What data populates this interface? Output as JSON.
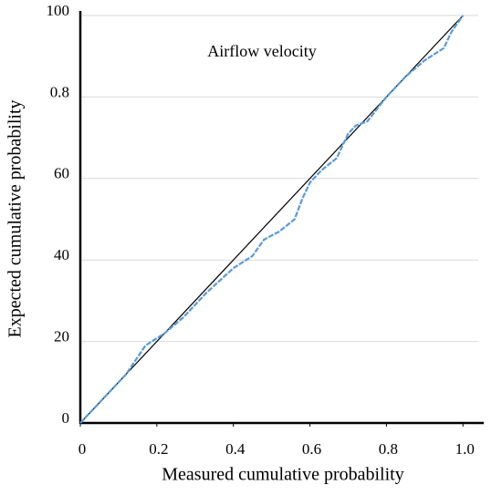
{
  "chart_data": {
    "type": "line",
    "annotation": "Airflow velocity",
    "x_label": "Measured cumulative probability",
    "y_label": "Expected cumulative probability",
    "xlim": [
      0,
      1.04
    ],
    "ylim": [
      0,
      1
    ],
    "xticks": [
      0,
      0.2,
      0.4,
      0.6,
      0.8,
      {
        "value": 1,
        "label": "1.0"
      }
    ],
    "yticks": [
      0,
      {
        "value": 0.2,
        "label": "20"
      },
      {
        "value": 0.4,
        "label": "40"
      },
      {
        "value": 0.6,
        "label": "60"
      },
      0.8,
      {
        "value": 1,
        "label": "100"
      }
    ],
    "grid": true,
    "series": [
      {
        "color": "#5b9bd5",
        "dashed": true,
        "x": [
          0,
          0.03,
          0.08,
          0.12,
          0.17,
          0.22,
          0.27,
          0.33,
          0.4,
          0.45,
          0.48,
          0.52,
          0.56,
          0.58,
          0.6,
          0.63,
          0.67,
          0.7,
          0.72,
          0.75,
          0.8,
          0.85,
          0.9,
          0.95,
          0.97,
          1.0
        ],
        "values": [
          0,
          0.03,
          0.08,
          0.12,
          0.19,
          0.22,
          0.26,
          0.32,
          0.38,
          0.41,
          0.45,
          0.47,
          0.5,
          0.55,
          0.59,
          0.62,
          0.65,
          0.71,
          0.73,
          0.74,
          0.8,
          0.85,
          0.89,
          0.92,
          0.96,
          1.0
        ]
      },
      {
        "color": "#000000",
        "dashed": false,
        "x": [
          0,
          1
        ],
        "values": [
          0,
          1
        ]
      }
    ]
  }
}
